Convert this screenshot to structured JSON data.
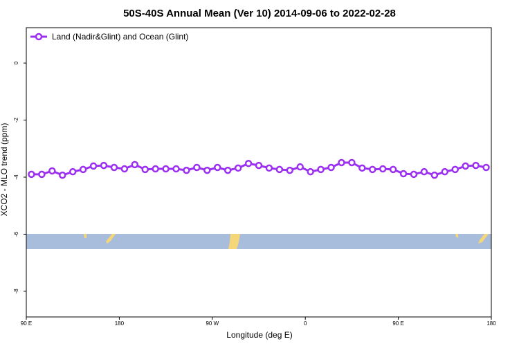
{
  "chart_data": {
    "type": "line",
    "title": "50S-40S Annual Mean (Ver 10)   2014-09-06 to 2022-02-28",
    "xlabel": "Longitude (deg E)",
    "ylabel": "XCO2 - MLO trend (ppm)",
    "x": [
      95,
      105,
      115,
      125,
      135,
      145,
      155,
      165,
      175,
      185,
      195,
      205,
      215,
      225,
      235,
      245,
      255,
      265,
      275,
      285,
      295,
      305,
      315,
      325,
      335,
      345,
      355,
      365,
      375,
      385,
      395,
      405,
      415,
      425,
      435,
      445,
      455,
      465,
      475,
      485,
      495,
      505,
      515,
      525,
      535
    ],
    "series": [
      {
        "name": "Land (Nadir&Glint) and Ocean (Glint)",
        "color": "#9b30f0",
        "values": [
          -3.9,
          -3.9,
          -3.78,
          -3.93,
          -3.81,
          -3.73,
          -3.61,
          -3.59,
          -3.66,
          -3.71,
          -3.56,
          -3.73,
          -3.71,
          -3.71,
          -3.71,
          -3.76,
          -3.66,
          -3.76,
          -3.66,
          -3.76,
          -3.68,
          -3.52,
          -3.59,
          -3.68,
          -3.73,
          -3.76,
          -3.64,
          -3.81,
          -3.73,
          -3.66,
          -3.49,
          -3.49,
          -3.68,
          -3.73,
          -3.71,
          -3.73,
          -3.88,
          -3.9,
          -3.81,
          -3.93,
          -3.81,
          -3.73,
          -3.61,
          -3.59,
          -3.66
        ]
      }
    ],
    "xlim": [
      90,
      540
    ],
    "xticks": [
      {
        "value": 90,
        "label": "90 E"
      },
      180,
      {
        "value": 270,
        "label": "90 W"
      },
      {
        "value": 360,
        "label": "0"
      },
      {
        "value": 450,
        "label": "90 E"
      },
      {
        "value": 540,
        "label": "180"
      }
    ],
    "ylim": [
      -8.9,
      1.24
    ],
    "yticks": [
      0,
      -2,
      -4,
      -6,
      -8
    ],
    "legend": "top-left"
  }
}
